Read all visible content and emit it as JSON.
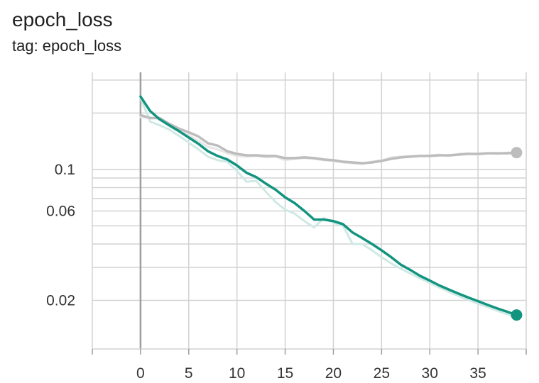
{
  "header": {
    "title": "epoch_loss",
    "tag": "tag: epoch_loss"
  },
  "chart_data": {
    "type": "line",
    "title": "epoch_loss",
    "subtitle": "tag: epoch_loss",
    "xlabel": "",
    "ylabel": "",
    "y_scale": "log",
    "xlim": [
      -5,
      40
    ],
    "ylim": [
      0.011,
      0.33
    ],
    "x_ticks": [
      0,
      5,
      10,
      15,
      20,
      25,
      30,
      35
    ],
    "y_tick_labels": [
      {
        "value": 0.1,
        "label": "0.1"
      },
      {
        "value": 0.06,
        "label": "0.06"
      },
      {
        "value": 0.02,
        "label": "0.02"
      }
    ],
    "y_grid_values": [
      0.02,
      0.03,
      0.04,
      0.05,
      0.06,
      0.07,
      0.08,
      0.09,
      0.1,
      0.2,
      0.3
    ],
    "grid": true,
    "colors": {
      "train": "#12947f",
      "train_raw": "#cfe9e4",
      "validation": "#bdbdbd",
      "validation_raw": "#e6e6e6",
      "zero_line": "#9e9e9e",
      "grid": "#d2d2d2"
    },
    "series": [
      {
        "role": "train",
        "x": [
          0,
          1,
          2,
          3,
          4,
          5,
          6,
          7,
          8,
          9,
          10,
          11,
          12,
          13,
          14,
          15,
          16,
          17,
          18,
          19,
          20,
          21,
          22,
          23,
          24,
          25,
          26,
          27,
          28,
          29,
          30,
          31,
          32,
          33,
          34,
          35,
          36,
          37,
          38,
          39
        ],
        "values": [
          0.245,
          0.205,
          0.185,
          0.172,
          0.16,
          0.148,
          0.137,
          0.125,
          0.118,
          0.113,
          0.105,
          0.096,
          0.091,
          0.084,
          0.078,
          0.071,
          0.066,
          0.06,
          0.054,
          0.054,
          0.053,
          0.051,
          0.046,
          0.043,
          0.04,
          0.037,
          0.034,
          0.031,
          0.029,
          0.027,
          0.0255,
          0.024,
          0.0228,
          0.0217,
          0.0207,
          0.0198,
          0.0189,
          0.0181,
          0.0174,
          0.0167
        ]
      },
      {
        "role": "train_raw",
        "x": [
          0,
          1,
          2,
          3,
          4,
          5,
          6,
          7,
          8,
          9,
          10,
          11,
          12,
          13,
          14,
          15,
          16,
          17,
          18,
          19,
          20,
          21,
          22,
          23,
          24,
          25,
          26,
          27,
          28,
          29,
          30,
          31,
          32,
          33,
          34,
          35,
          36,
          37,
          38,
          39
        ],
        "values": [
          0.24,
          0.18,
          0.172,
          0.163,
          0.151,
          0.139,
          0.128,
          0.117,
          0.112,
          0.11,
          0.098,
          0.086,
          0.087,
          0.076,
          0.067,
          0.061,
          0.058,
          0.053,
          0.049,
          0.055,
          0.052,
          0.05,
          0.04,
          0.04,
          0.037,
          0.034,
          0.0315,
          0.0295,
          0.0278,
          0.0262,
          0.0248,
          0.0234,
          0.0222,
          0.0211,
          0.0201,
          0.0192,
          0.0184,
          0.0176,
          0.0169,
          0.0163
        ]
      },
      {
        "role": "validation",
        "x": [
          0,
          1,
          2,
          3,
          4,
          5,
          6,
          7,
          8,
          9,
          10,
          11,
          12,
          13,
          14,
          15,
          16,
          17,
          18,
          19,
          20,
          21,
          22,
          23,
          24,
          25,
          26,
          27,
          28,
          29,
          30,
          31,
          32,
          33,
          34,
          35,
          36,
          37,
          38,
          39
        ],
        "values": [
          0.195,
          0.188,
          0.188,
          0.175,
          0.165,
          0.158,
          0.15,
          0.138,
          0.134,
          0.125,
          0.121,
          0.119,
          0.119,
          0.118,
          0.118,
          0.115,
          0.115,
          0.116,
          0.115,
          0.113,
          0.112,
          0.11,
          0.109,
          0.108,
          0.109,
          0.111,
          0.114,
          0.116,
          0.117,
          0.118,
          0.118,
          0.119,
          0.119,
          0.12,
          0.121,
          0.121,
          0.122,
          0.122,
          0.122,
          0.123
        ]
      },
      {
        "role": "validation_raw",
        "x": [
          0,
          1,
          2,
          3,
          4,
          5,
          6,
          7,
          8,
          9,
          10,
          11,
          12,
          13,
          14,
          15,
          16,
          17,
          18,
          19,
          20,
          21,
          22,
          23,
          24,
          25,
          26,
          27,
          28,
          29,
          30,
          31,
          32,
          33,
          34,
          35,
          36,
          37,
          38,
          39
        ],
        "values": [
          0.19,
          0.19,
          0.186,
          0.17,
          0.16,
          0.152,
          0.142,
          0.132,
          0.128,
          0.122,
          0.118,
          0.117,
          0.118,
          0.116,
          0.117,
          0.112,
          0.114,
          0.115,
          0.114,
          0.112,
          0.111,
          0.109,
          0.108,
          0.107,
          0.11,
          0.112,
          0.116,
          0.117,
          0.118,
          0.118,
          0.119,
          0.12,
          0.118,
          0.121,
          0.122,
          0.12,
          0.122,
          0.121,
          0.123,
          0.123
        ]
      }
    ]
  }
}
